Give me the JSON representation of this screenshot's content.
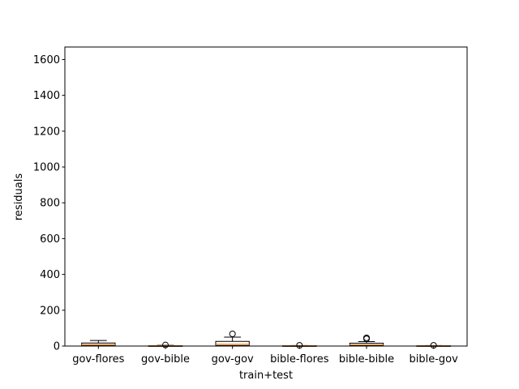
{
  "chart_data": {
    "type": "box",
    "title": "",
    "xlabel": "train+test",
    "ylabel": "residuals",
    "ylim": [
      0,
      1670
    ],
    "yticks": [
      0,
      200,
      400,
      600,
      800,
      1000,
      1200,
      1400,
      1600
    ],
    "ytick_labels": [
      "0",
      "200",
      "400",
      "600",
      "800",
      "1000",
      "1200",
      "1400",
      "1600"
    ],
    "categories": [
      "gov-flores",
      "gov-bible",
      "gov-gov",
      "bible-flores",
      "bible-bible",
      "bible-gov"
    ],
    "boxes": [
      {
        "whisker_low": 0,
        "q1": 2,
        "median": 8,
        "q3": 17,
        "whisker_high": 31,
        "outliers": []
      },
      {
        "whisker_low": 0,
        "q1": 0,
        "median": 1,
        "q3": 2,
        "whisker_high": 4,
        "outliers": [
          6
        ]
      },
      {
        "whisker_low": 0,
        "q1": 3,
        "median": 10,
        "q3": 26,
        "whisker_high": 50,
        "outliers": [
          68
        ]
      },
      {
        "whisker_low": 0,
        "q1": 0,
        "median": 1,
        "q3": 2,
        "whisker_high": 3,
        "outliers": [
          4
        ]
      },
      {
        "whisker_low": 0,
        "q1": 2,
        "median": 7,
        "q3": 16,
        "whisker_high": 25,
        "outliers": [
          40,
          46
        ]
      },
      {
        "whisker_low": 0,
        "q1": 0,
        "median": 1,
        "q3": 2,
        "whisker_high": 3,
        "outliers": [
          4
        ]
      }
    ],
    "colors": {
      "box": "#000000",
      "median": "#ff7f0e",
      "background": "#ffffff"
    },
    "grid": false
  }
}
